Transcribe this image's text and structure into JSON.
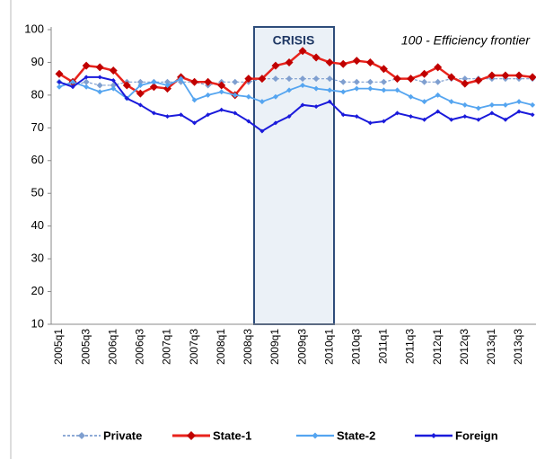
{
  "chart_data": {
    "type": "line",
    "annotation": "100 - Efficiency frontier",
    "highlight_label": "CRISIS",
    "categories": [
      "2005q1",
      null,
      "2005q3",
      null,
      "2006q1",
      null,
      "2006q3",
      null,
      "2007q1",
      null,
      "2007q3",
      null,
      "2008q1",
      null,
      "2008q3",
      null,
      "2009q1",
      null,
      "2009q3",
      null,
      "2010q1",
      null,
      "2010q3",
      null,
      "2011q1",
      null,
      "2011q3",
      null,
      "2012q1",
      null,
      "2012q3",
      null,
      "2013q1",
      null,
      "2013q3",
      null
    ],
    "series": [
      {
        "name": "Private",
        "color": "#7f9fd0",
        "values": [
          84,
          83,
          84,
          83,
          83,
          84,
          84,
          84,
          84,
          84,
          84,
          83,
          84,
          84,
          84,
          85,
          85,
          85,
          85,
          85,
          85,
          84,
          84,
          84,
          84,
          85,
          85,
          84,
          84,
          85,
          85,
          85,
          85,
          85,
          85,
          85
        ]
      },
      {
        "name": "State-1",
        "color": "#e8231c",
        "values": [
          86.5,
          84,
          89,
          88.5,
          87.5,
          83,
          80.5,
          82.5,
          82,
          85.5,
          84,
          84,
          83,
          80,
          85,
          85,
          89,
          90,
          93.5,
          91.5,
          90,
          89.5,
          90.5,
          90,
          88,
          85,
          85,
          86.5,
          88.5,
          85.5,
          83.5,
          84.5,
          86,
          86,
          86,
          85.5
        ]
      },
      {
        "name": "State-2",
        "color": "#55a5f0",
        "values": [
          82.5,
          84,
          82.5,
          81,
          82,
          79,
          83,
          84,
          83,
          85,
          78.5,
          80,
          81,
          80,
          79.5,
          78,
          79.5,
          81.5,
          83,
          82,
          81.5,
          81,
          82,
          82,
          81.5,
          81.5,
          79.5,
          78,
          80,
          78,
          77,
          76,
          77,
          77,
          78,
          77
        ]
      },
      {
        "name": "Foreign",
        "color": "#1a1adb",
        "values": [
          84,
          82.5,
          85.5,
          85.5,
          84.5,
          79,
          77,
          74.5,
          73.5,
          74,
          71.5,
          74,
          75.5,
          74.5,
          72,
          69,
          71.5,
          73.5,
          77,
          76.5,
          78,
          74,
          73.5,
          71.5,
          72,
          74.5,
          73.5,
          72.5,
          75,
          72.5,
          73.5,
          72.5,
          74.5,
          72.5,
          75,
          74
        ]
      }
    ],
    "ylim": [
      10,
      100
    ],
    "yticks": [
      10,
      20,
      30,
      40,
      50,
      60,
      70,
      80,
      90,
      100
    ],
    "grid": false,
    "legend": "bottom"
  }
}
